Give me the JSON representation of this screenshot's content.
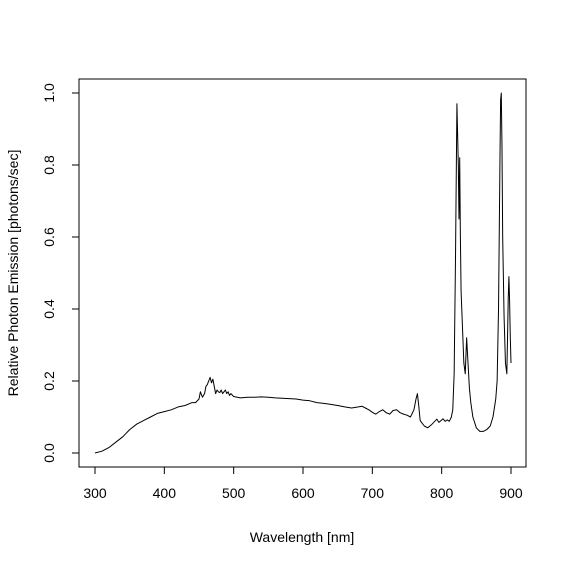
{
  "chart_data": {
    "type": "line",
    "title": "",
    "xlabel": "Wavelength [nm]",
    "ylabel": "Relative Photon Emission [photons/sec]",
    "xlim": [
      300,
      900
    ],
    "ylim": [
      0,
      1.0
    ],
    "xticks": [
      300,
      400,
      500,
      600,
      700,
      800,
      900
    ],
    "xtick_labels": [
      "300",
      "400",
      "500",
      "600",
      "700",
      "800",
      "900"
    ],
    "yticks": [
      0.0,
      0.2,
      0.4,
      0.6,
      0.8,
      1.0
    ],
    "ytick_labels": [
      "0.0",
      "0.2",
      "0.4",
      "0.6",
      "0.8",
      "1.0"
    ],
    "grid": false,
    "line_color": "#000000",
    "series": [
      {
        "x": [
          300,
          310,
          320,
          330,
          340,
          350,
          360,
          370,
          380,
          390,
          400,
          410,
          420,
          430,
          440,
          445,
          450,
          452,
          455,
          458,
          460,
          462,
          464,
          466,
          468,
          470,
          472,
          474,
          476,
          478,
          480,
          482,
          484,
          486,
          488,
          490,
          492,
          494,
          496,
          500,
          505,
          510,
          520,
          530,
          540,
          550,
          560,
          570,
          580,
          590,
          600,
          610,
          620,
          630,
          640,
          650,
          660,
          670,
          680,
          685,
          690,
          695,
          700,
          705,
          710,
          715,
          720,
          725,
          730,
          735,
          740,
          745,
          750,
          755,
          760,
          763,
          765,
          767,
          769,
          771,
          775,
          780,
          785,
          790,
          793,
          796,
          799,
          802,
          805,
          808,
          811,
          814,
          816,
          818,
          820,
          822,
          824,
          825,
          826,
          827,
          828,
          830,
          832,
          834,
          836,
          838,
          840,
          842,
          845,
          850,
          855,
          860,
          865,
          870,
          874,
          878,
          880,
          882,
          884,
          885,
          886,
          887,
          888,
          890,
          892,
          894,
          895,
          896,
          897,
          898,
          899,
          900
        ],
        "y": [
          0.0,
          0.005,
          0.015,
          0.03,
          0.045,
          0.065,
          0.08,
          0.09,
          0.1,
          0.11,
          0.115,
          0.12,
          0.128,
          0.132,
          0.14,
          0.14,
          0.15,
          0.17,
          0.155,
          0.165,
          0.185,
          0.19,
          0.2,
          0.21,
          0.195,
          0.205,
          0.185,
          0.165,
          0.175,
          0.17,
          0.168,
          0.175,
          0.165,
          0.17,
          0.175,
          0.165,
          0.17,
          0.16,
          0.165,
          0.157,
          0.155,
          0.153,
          0.155,
          0.155,
          0.156,
          0.155,
          0.153,
          0.152,
          0.151,
          0.15,
          0.147,
          0.145,
          0.14,
          0.138,
          0.135,
          0.132,
          0.128,
          0.125,
          0.128,
          0.13,
          0.125,
          0.12,
          0.113,
          0.108,
          0.115,
          0.12,
          0.112,
          0.108,
          0.118,
          0.12,
          0.112,
          0.108,
          0.105,
          0.1,
          0.12,
          0.15,
          0.165,
          0.13,
          0.09,
          0.085,
          0.075,
          0.07,
          0.078,
          0.088,
          0.094,
          0.085,
          0.09,
          0.095,
          0.088,
          0.092,
          0.088,
          0.1,
          0.12,
          0.22,
          0.55,
          0.97,
          0.8,
          0.65,
          0.82,
          0.6,
          0.45,
          0.35,
          0.25,
          0.22,
          0.32,
          0.25,
          0.18,
          0.14,
          0.1,
          0.07,
          0.06,
          0.06,
          0.065,
          0.075,
          0.1,
          0.15,
          0.2,
          0.4,
          0.8,
          0.98,
          1.0,
          0.85,
          0.6,
          0.38,
          0.25,
          0.22,
          0.32,
          0.43,
          0.49,
          0.42,
          0.32,
          0.25
        ]
      }
    ]
  }
}
